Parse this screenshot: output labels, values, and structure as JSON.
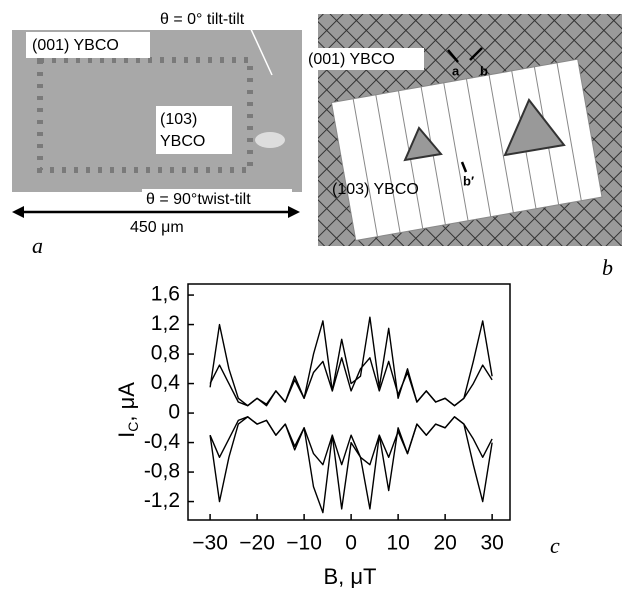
{
  "panel_a": {
    "label": "a",
    "texts": [
      "(001) YBCO",
      "θ = 0° tilt-tilt",
      "(103)",
      "YBCO",
      "θ = 90°twist-tilt"
    ],
    "scale_bar": "450 μm"
  },
  "panel_b": {
    "label": "b",
    "texts": [
      "(001) YBCO",
      "(103) YBCO",
      "a",
      "b",
      "b′"
    ]
  },
  "panel_c": {
    "label": "c"
  },
  "chart_data": {
    "type": "line",
    "xlabel": "B, μT",
    "ylabel": [
      "I",
      "C",
      ", μA"
    ],
    "x": [
      -30,
      -28,
      -26,
      -24,
      -22,
      -20,
      -18,
      -16,
      -14,
      -12,
      -10,
      -8,
      -6,
      -4,
      -2,
      0,
      2,
      4,
      6,
      8,
      10,
      12,
      14,
      16,
      18,
      20,
      22,
      24,
      26,
      28,
      30
    ],
    "series": [
      {
        "color": "#000000",
        "values": [
          0.35,
          1.2,
          0.6,
          0.2,
          0.1,
          0.2,
          0.12,
          0.3,
          0.15,
          0.5,
          0.2,
          0.8,
          1.25,
          0.3,
          1.0,
          0.4,
          0.5,
          1.3,
          0.35,
          1.15,
          0.2,
          0.6,
          0.15,
          0.3,
          0.15,
          0.2,
          0.1,
          0.2,
          0.7,
          1.25,
          0.5
        ]
      },
      {
        "color": "#000000",
        "values": [
          0.4,
          0.65,
          0.4,
          0.15,
          0.1,
          0.2,
          0.1,
          0.3,
          0.15,
          0.45,
          0.2,
          0.55,
          0.7,
          0.3,
          0.75,
          0.3,
          0.6,
          0.75,
          0.3,
          0.7,
          0.25,
          0.55,
          0.15,
          0.3,
          0.15,
          0.2,
          0.1,
          0.2,
          0.4,
          0.65,
          0.45
        ]
      },
      {
        "color": "#000000",
        "values": [
          -0.3,
          -0.6,
          -0.35,
          -0.1,
          -0.05,
          -0.15,
          -0.1,
          -0.3,
          -0.15,
          -0.45,
          -0.2,
          -0.55,
          -0.7,
          -0.3,
          -0.7,
          -0.3,
          -0.6,
          -0.7,
          -0.3,
          -0.6,
          -0.25,
          -0.55,
          -0.15,
          -0.3,
          -0.15,
          -0.2,
          -0.05,
          -0.15,
          -0.35,
          -0.6,
          -0.35
        ]
      },
      {
        "color": "#000000",
        "values": [
          -0.3,
          -1.2,
          -0.6,
          -0.15,
          -0.05,
          -0.15,
          -0.1,
          -0.3,
          -0.15,
          -0.5,
          -0.2,
          -1.0,
          -1.35,
          -0.3,
          -1.3,
          -0.4,
          -0.6,
          -1.3,
          -0.3,
          -1.05,
          -0.2,
          -0.55,
          -0.15,
          -0.3,
          -0.15,
          -0.2,
          -0.05,
          -0.15,
          -0.7,
          -1.2,
          -0.4
        ]
      }
    ],
    "xlim": [
      -34.7,
      33.8
    ],
    "ylim": [
      -1.45,
      1.75
    ],
    "xticks": [
      {
        "value": -30,
        "label": "−30"
      },
      {
        "value": -20,
        "label": "−20"
      },
      {
        "value": -10,
        "label": "−10"
      },
      0,
      10,
      20,
      30
    ],
    "yticks": [
      {
        "value": 1.6,
        "label": "1,6"
      },
      {
        "value": 1.2,
        "label": "1,2"
      },
      {
        "value": 0.8,
        "label": "0,8"
      },
      {
        "value": 0.4,
        "label": "0,4"
      },
      0,
      {
        "value": -0.4,
        "label": "-0,4"
      },
      {
        "value": -0.8,
        "label": "-0,8"
      },
      {
        "value": -1.2,
        "label": "-1,2"
      }
    ]
  }
}
